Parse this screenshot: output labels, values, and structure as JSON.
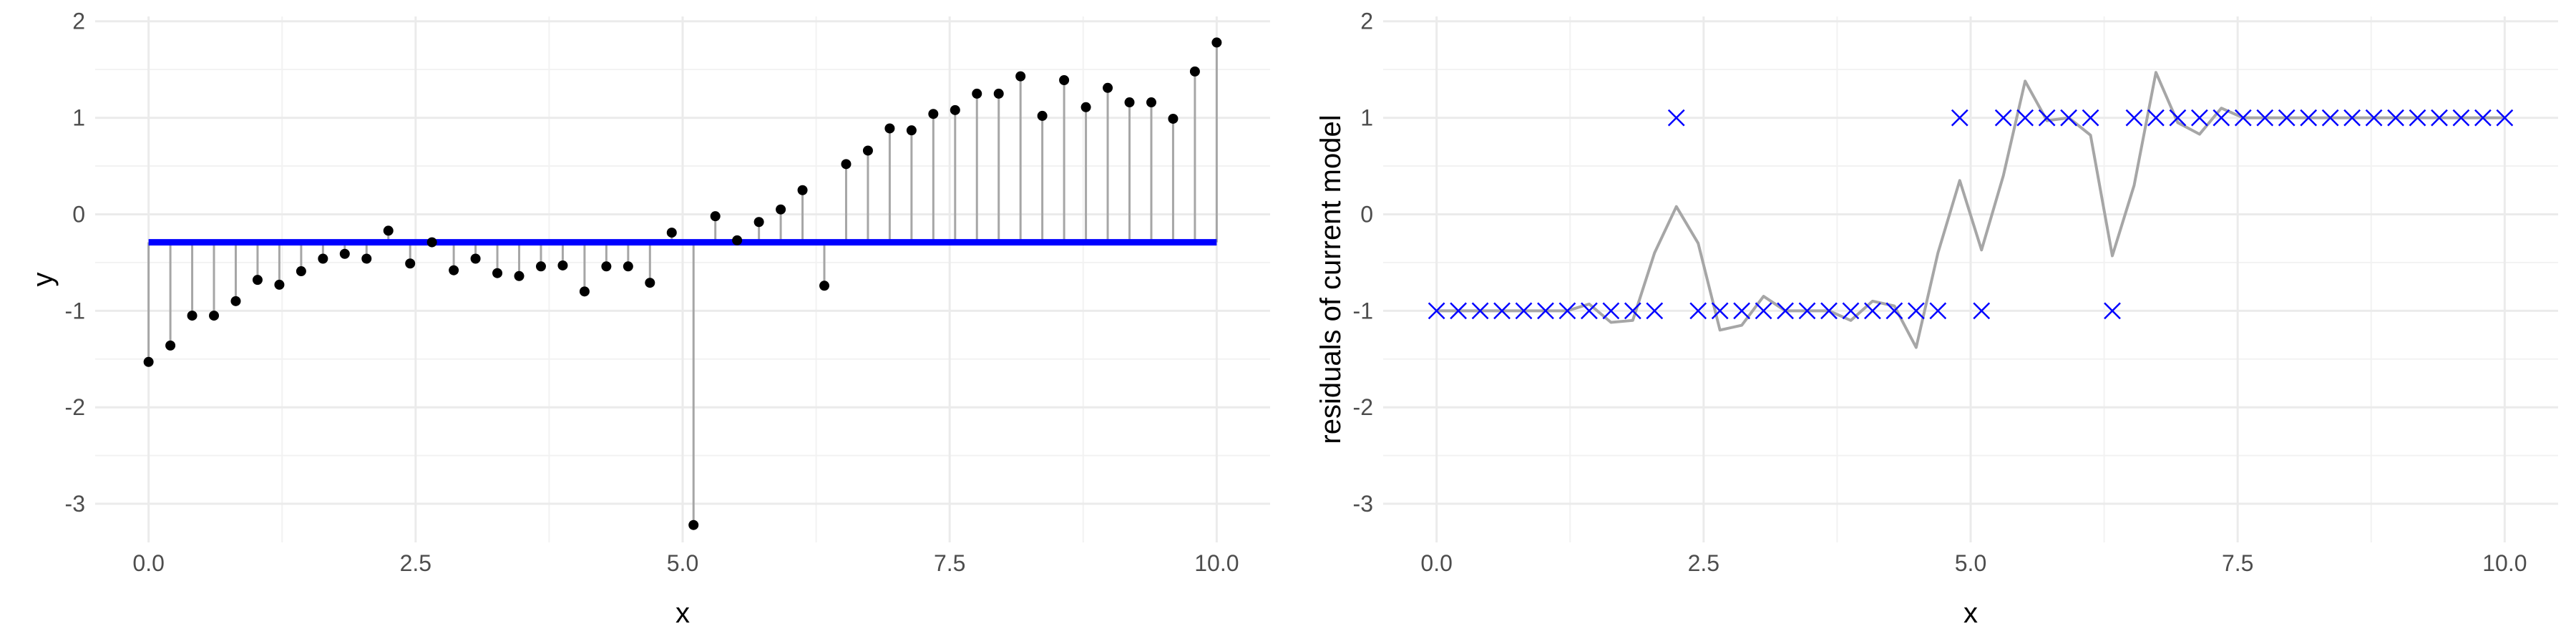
{
  "chart_data": [
    {
      "type": "stem",
      "xlabel": "x",
      "ylabel": "y",
      "xlim": [
        -0.5,
        10.5
      ],
      "ylim": [
        -3.4,
        2.05
      ],
      "xticks": [
        {
          "value": 0,
          "label": "0.0"
        },
        {
          "value": 2.5,
          "label": "2.5"
        },
        {
          "value": 5,
          "label": "5.0"
        },
        {
          "value": 7.5,
          "label": "7.5"
        },
        {
          "value": 10,
          "label": "10.0"
        }
      ],
      "yticks": [
        -3,
        -2,
        -1,
        0,
        1,
        2
      ],
      "grid": true,
      "x": [
        0,
        0.2041,
        0.4082,
        0.6122,
        0.8163,
        1.0204,
        1.2245,
        1.4286,
        1.6327,
        1.8367,
        2.0408,
        2.2449,
        2.449,
        2.6531,
        2.8571,
        3.0612,
        3.2653,
        3.4694,
        3.6735,
        3.8776,
        4.0816,
        4.2857,
        4.4898,
        4.6939,
        4.898,
        5.102,
        5.3061,
        5.5102,
        5.7143,
        5.9184,
        6.1224,
        6.3265,
        6.5306,
        6.7347,
        6.9388,
        7.1429,
        7.3469,
        7.551,
        7.7551,
        7.9592,
        8.1633,
        8.3673,
        8.5714,
        8.7755,
        8.9796,
        9.1837,
        9.3878,
        9.5918,
        9.7959,
        10
      ],
      "values": [
        -1.53,
        -1.36,
        -1.05,
        -1.05,
        -0.9,
        -0.68,
        -0.73,
        -0.59,
        -0.46,
        -0.41,
        -0.46,
        -0.17,
        -0.51,
        -0.29,
        -0.58,
        -0.46,
        -0.61,
        -0.64,
        -0.54,
        -0.53,
        -0.8,
        -0.54,
        -0.54,
        -0.71,
        -0.19,
        -3.22,
        -0.02,
        -0.27,
        -0.08,
        0.05,
        0.25,
        -0.74,
        0.52,
        0.66,
        0.89,
        0.87,
        1.04,
        1.08,
        1.25,
        1.25,
        1.43,
        1.02,
        1.39,
        1.11,
        1.31,
        1.16,
        1.16,
        0.99,
        1.48,
        1.78
      ],
      "color": "#000000",
      "stem_color": "#a6a6a6",
      "baseline": -0.29,
      "baseline_color": "#0000ff"
    },
    {
      "type": "line_scatter",
      "xlabel": "x",
      "ylabel": "residuals of current model",
      "xlim": [
        -0.5,
        10.5
      ],
      "ylim": [
        -3.4,
        2.05
      ],
      "xticks": [
        {
          "value": 0,
          "label": "0.0"
        },
        {
          "value": 2.5,
          "label": "2.5"
        },
        {
          "value": 5,
          "label": "5.0"
        },
        {
          "value": 7.5,
          "label": "7.5"
        },
        {
          "value": 10,
          "label": "10.0"
        }
      ],
      "yticks": [
        -3,
        -2,
        -1,
        0,
        1,
        2
      ],
      "grid": true,
      "x": [
        0,
        0.2041,
        0.4082,
        0.6122,
        0.8163,
        1.0204,
        1.2245,
        1.4286,
        1.6327,
        1.8367,
        2.0408,
        2.2449,
        2.449,
        2.6531,
        2.8571,
        3.0612,
        3.2653,
        3.4694,
        3.6735,
        3.8776,
        4.0816,
        4.2857,
        4.4898,
        4.6939,
        4.898,
        5.102,
        5.3061,
        5.5102,
        5.7143,
        5.9184,
        6.1224,
        6.3265,
        6.5306,
        6.7347,
        6.9388,
        7.1429,
        7.3469,
        7.551,
        7.7551,
        7.9592,
        8.1633,
        8.3673,
        8.5714,
        8.7755,
        8.9796,
        9.1837,
        9.3878,
        9.5918,
        9.7959,
        10
      ],
      "series": [
        {
          "marker": "line",
          "color": "#a6a6a6",
          "values": [
            -1,
            -1,
            -1,
            -1,
            -1,
            -1,
            -1,
            -0.93,
            -1.12,
            -1.1,
            -0.4,
            0.08,
            -0.3,
            -1.2,
            -1.15,
            -0.85,
            -1.0,
            -1.0,
            -1.0,
            -1.1,
            -0.9,
            -0.95,
            -1.38,
            -0.4,
            0.35,
            -0.37,
            0.4,
            1.38,
            0.97,
            1.0,
            0.82,
            -0.43,
            0.3,
            1.47,
            0.95,
            0.83,
            1.1,
            1.0,
            1.0,
            1.0,
            1.0,
            1.0,
            1.0,
            1.0,
            1.0,
            1.0,
            1.0,
            1.0,
            1.0,
            1.0
          ]
        },
        {
          "marker": "x",
          "color": "#0000ff",
          "values": [
            -1,
            -1,
            -1,
            -1,
            -1,
            -1,
            -1,
            -1,
            -1,
            -1,
            -1,
            1,
            -1,
            -1,
            -1,
            -1,
            -1,
            -1,
            -1,
            -1,
            -1,
            -1,
            -1,
            -1,
            1,
            -1,
            1,
            1,
            1,
            1,
            1,
            -1,
            1,
            1,
            1,
            1,
            1,
            1,
            1,
            1,
            1,
            1,
            1,
            1,
            1,
            1,
            1,
            1,
            1,
            1
          ]
        }
      ]
    }
  ]
}
